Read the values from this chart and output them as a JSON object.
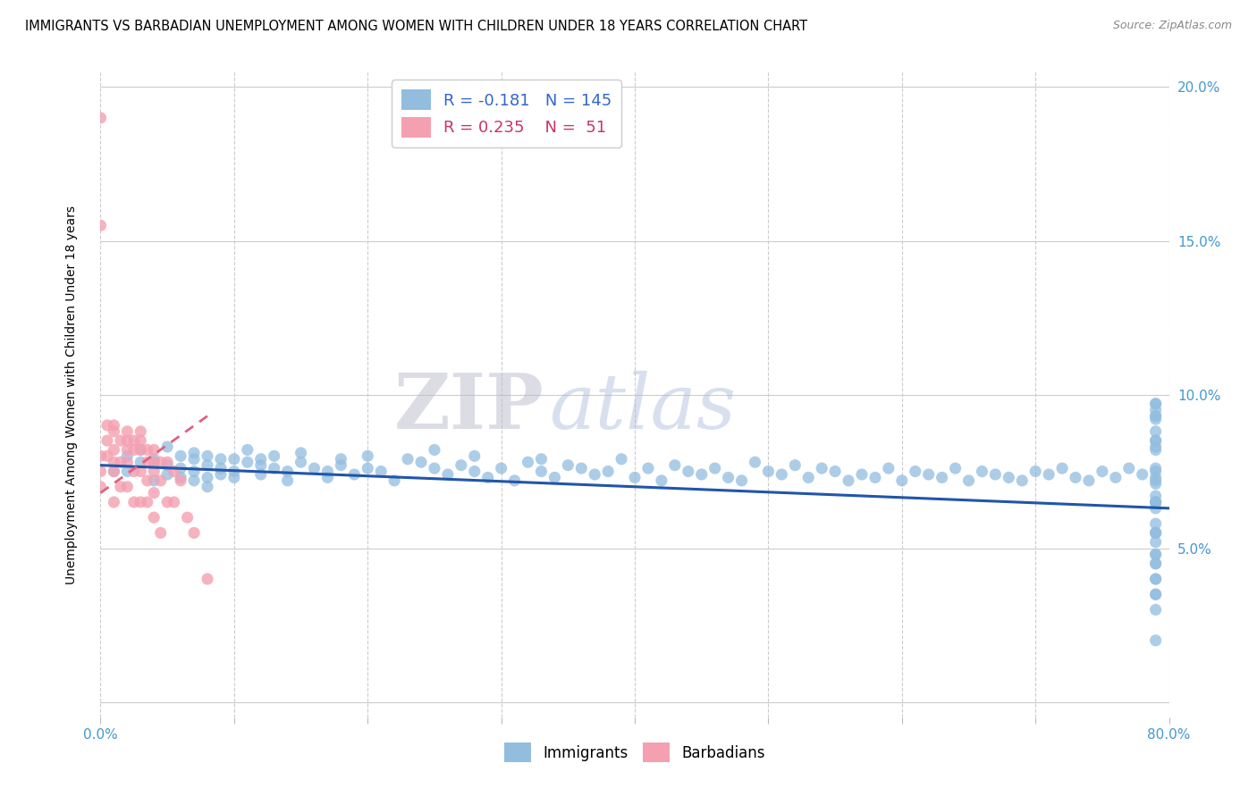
{
  "title": "IMMIGRANTS VS BARBADIAN UNEMPLOYMENT AMONG WOMEN WITH CHILDREN UNDER 18 YEARS CORRELATION CHART",
  "source": "Source: ZipAtlas.com",
  "ylabel": "Unemployment Among Women with Children Under 18 years",
  "xlim": [
    0.0,
    0.8
  ],
  "ylim": [
    -0.005,
    0.205
  ],
  "immigrants_R": -0.181,
  "immigrants_N": 145,
  "barbadians_R": 0.235,
  "barbadians_N": 51,
  "blue_color": "#92BDDF",
  "pink_color": "#F4A0B0",
  "blue_line_color": "#2255AA",
  "pink_line_color": "#E06080",
  "watermark_zip": "ZIP",
  "watermark_atlas": "atlas",
  "imm_x": [
    0.01,
    0.02,
    0.02,
    0.03,
    0.03,
    0.04,
    0.04,
    0.04,
    0.05,
    0.05,
    0.05,
    0.06,
    0.06,
    0.06,
    0.07,
    0.07,
    0.07,
    0.07,
    0.08,
    0.08,
    0.08,
    0.08,
    0.09,
    0.09,
    0.09,
    0.1,
    0.1,
    0.1,
    0.11,
    0.11,
    0.12,
    0.12,
    0.12,
    0.13,
    0.13,
    0.14,
    0.14,
    0.15,
    0.15,
    0.16,
    0.17,
    0.17,
    0.18,
    0.18,
    0.19,
    0.2,
    0.2,
    0.21,
    0.22,
    0.23,
    0.24,
    0.25,
    0.25,
    0.26,
    0.27,
    0.28,
    0.28,
    0.29,
    0.3,
    0.31,
    0.32,
    0.33,
    0.33,
    0.34,
    0.35,
    0.36,
    0.37,
    0.38,
    0.39,
    0.4,
    0.41,
    0.42,
    0.43,
    0.44,
    0.45,
    0.46,
    0.47,
    0.48,
    0.49,
    0.5,
    0.51,
    0.52,
    0.53,
    0.54,
    0.55,
    0.56,
    0.57,
    0.58,
    0.59,
    0.6,
    0.61,
    0.62,
    0.63,
    0.64,
    0.65,
    0.66,
    0.67,
    0.68,
    0.69,
    0.7,
    0.71,
    0.72,
    0.73,
    0.74,
    0.75,
    0.76,
    0.77,
    0.78,
    0.79,
    0.79,
    0.79,
    0.79,
    0.79,
    0.79,
    0.79,
    0.79,
    0.79,
    0.79,
    0.79,
    0.79,
    0.79,
    0.79,
    0.79,
    0.79,
    0.79,
    0.79,
    0.79,
    0.79,
    0.79,
    0.79,
    0.79,
    0.79,
    0.79,
    0.79,
    0.79,
    0.79,
    0.79,
    0.79,
    0.79,
    0.79,
    0.79,
    0.79,
    0.79,
    0.79,
    0.79
  ],
  "imm_y": [
    0.075,
    0.075,
    0.08,
    0.078,
    0.082,
    0.078,
    0.072,
    0.079,
    0.077,
    0.074,
    0.083,
    0.076,
    0.08,
    0.073,
    0.079,
    0.075,
    0.072,
    0.081,
    0.077,
    0.073,
    0.08,
    0.07,
    0.076,
    0.079,
    0.074,
    0.075,
    0.073,
    0.079,
    0.078,
    0.082,
    0.079,
    0.074,
    0.077,
    0.076,
    0.08,
    0.075,
    0.072,
    0.078,
    0.081,
    0.076,
    0.075,
    0.073,
    0.079,
    0.077,
    0.074,
    0.076,
    0.08,
    0.075,
    0.072,
    0.079,
    0.078,
    0.076,
    0.082,
    0.074,
    0.077,
    0.075,
    0.08,
    0.073,
    0.076,
    0.072,
    0.078,
    0.079,
    0.075,
    0.073,
    0.077,
    0.076,
    0.074,
    0.075,
    0.079,
    0.073,
    0.076,
    0.072,
    0.077,
    0.075,
    0.074,
    0.076,
    0.073,
    0.072,
    0.078,
    0.075,
    0.074,
    0.077,
    0.073,
    0.076,
    0.075,
    0.072,
    0.074,
    0.073,
    0.076,
    0.072,
    0.075,
    0.074,
    0.073,
    0.076,
    0.072,
    0.075,
    0.074,
    0.073,
    0.072,
    0.075,
    0.074,
    0.076,
    0.073,
    0.072,
    0.075,
    0.073,
    0.076,
    0.074,
    0.071,
    0.093,
    0.097,
    0.085,
    0.052,
    0.065,
    0.048,
    0.063,
    0.055,
    0.04,
    0.097,
    0.088,
    0.076,
    0.067,
    0.055,
    0.045,
    0.035,
    0.095,
    0.085,
    0.075,
    0.065,
    0.058,
    0.045,
    0.035,
    0.092,
    0.082,
    0.072,
    0.065,
    0.055,
    0.048,
    0.04,
    0.03,
    0.02,
    0.093,
    0.083,
    0.073,
    0.065
  ],
  "barb_x": [
    0.0,
    0.0,
    0.0,
    0.0,
    0.0,
    0.005,
    0.005,
    0.005,
    0.01,
    0.01,
    0.01,
    0.01,
    0.01,
    0.01,
    0.015,
    0.015,
    0.015,
    0.02,
    0.02,
    0.02,
    0.02,
    0.02,
    0.025,
    0.025,
    0.025,
    0.025,
    0.03,
    0.03,
    0.03,
    0.03,
    0.03,
    0.035,
    0.035,
    0.035,
    0.035,
    0.04,
    0.04,
    0.04,
    0.04,
    0.04,
    0.045,
    0.045,
    0.045,
    0.05,
    0.05,
    0.055,
    0.055,
    0.06,
    0.065,
    0.07,
    0.08
  ],
  "barb_y": [
    0.19,
    0.155,
    0.08,
    0.075,
    0.07,
    0.09,
    0.085,
    0.08,
    0.09,
    0.088,
    0.082,
    0.078,
    0.075,
    0.065,
    0.085,
    0.078,
    0.07,
    0.088,
    0.085,
    0.082,
    0.078,
    0.07,
    0.085,
    0.082,
    0.075,
    0.065,
    0.088,
    0.085,
    0.082,
    0.075,
    0.065,
    0.082,
    0.078,
    0.072,
    0.065,
    0.082,
    0.078,
    0.075,
    0.068,
    0.06,
    0.078,
    0.072,
    0.055,
    0.078,
    0.065,
    0.075,
    0.065,
    0.072,
    0.06,
    0.055,
    0.04
  ],
  "blue_trend_x0": 0.0,
  "blue_trend_y0": 0.077,
  "blue_trend_x1": 0.8,
  "blue_trend_y1": 0.063,
  "pink_trend_x0": 0.0,
  "pink_trend_y0": 0.068,
  "pink_trend_x1": 0.08,
  "pink_trend_y1": 0.093
}
